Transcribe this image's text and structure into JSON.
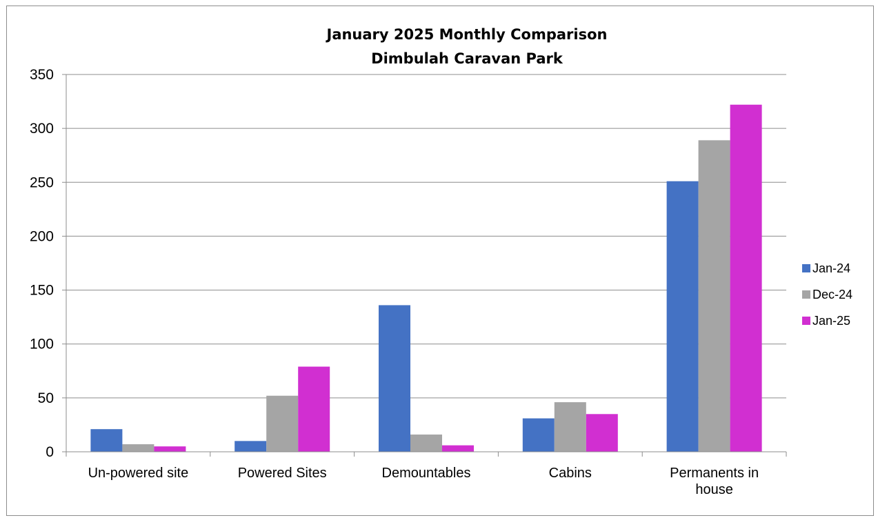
{
  "chart_data": {
    "type": "bar",
    "title": "January 2025 Monthly Comparison",
    "subtitle": "Dimbulah Caravan Park",
    "categories": [
      [
        "Un-powered site"
      ],
      [
        "Powered Sites"
      ],
      [
        "Demountables"
      ],
      [
        "Cabins"
      ],
      [
        "Permanents in",
        "house"
      ]
    ],
    "series": [
      {
        "name": "Jan-24",
        "color": "#4472C4",
        "values": [
          21,
          10,
          136,
          31,
          251
        ]
      },
      {
        "name": "Dec-24",
        "color": "#A5A5A5",
        "values": [
          7,
          52,
          16,
          46,
          289
        ]
      },
      {
        "name": "Jan-25",
        "color": "#D12FD1",
        "values": [
          5,
          79,
          6,
          35,
          322
        ]
      }
    ],
    "ylim": [
      0,
      350
    ],
    "yticks": [
      "0",
      "50",
      "100",
      "150",
      "200",
      "250",
      "300",
      "350"
    ],
    "grid": true,
    "legend_position": "right"
  }
}
